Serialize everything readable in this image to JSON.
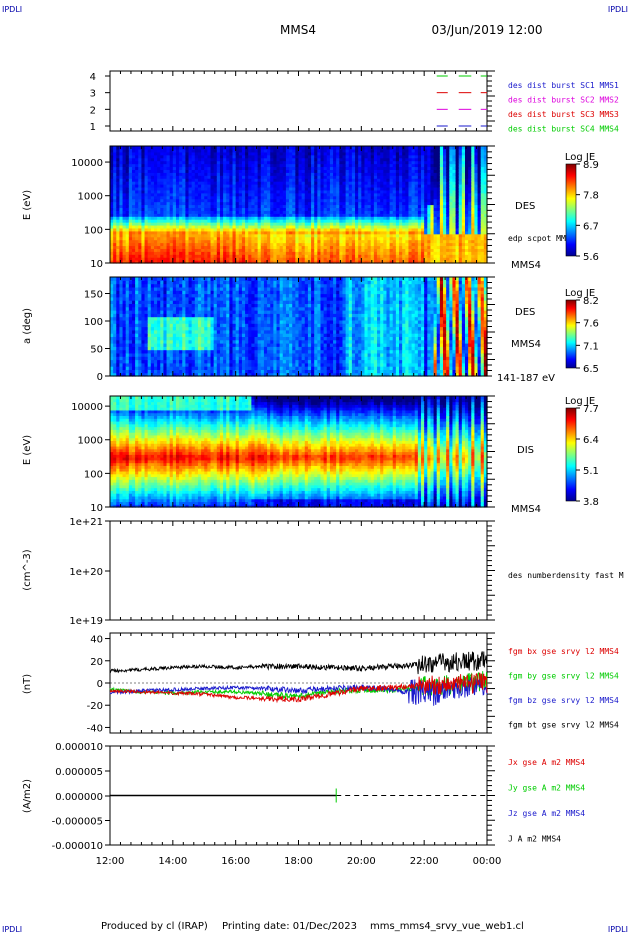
{
  "header": {
    "corner_label": "IPDLI",
    "spacecraft": "MMS4",
    "datetime": "03/Jun/2019 12:00"
  },
  "footer": {
    "produced_by": "Produced by cl (IRAP)",
    "printing_date": "Printing date: 01/Dec/2023",
    "script": "mms_mms4_srvy_vue_web1.cl"
  },
  "colors": {
    "blue": "#1a1acc",
    "magenta": "#dd00dd",
    "red": "#dd0000",
    "green": "#00cc00",
    "black": "#000000"
  },
  "chart_data": [
    {
      "type": "line",
      "panel": "burst-flags",
      "yticks": [
        "1",
        "2",
        "3",
        "4"
      ],
      "ylim": [
        0.7,
        4.3
      ],
      "legend": [
        {
          "text": "des dist burst SC1 MMS1",
          "color": "blue"
        },
        {
          "text": "des dist burst SC2 MMS2",
          "color": "magenta"
        },
        {
          "text": "des dist burst SC3 MMS3",
          "color": "red"
        },
        {
          "text": "des dist burst SC4 MMS4",
          "color": "green"
        }
      ],
      "series": [
        {
          "level": 4,
          "color": "green",
          "intervals": [
            [
              22.4,
              22.75
            ],
            [
              23.1,
              23.5
            ],
            [
              23.8,
              24.0
            ]
          ]
        },
        {
          "level": 3,
          "color": "red",
          "intervals": [
            [
              22.4,
              22.75
            ],
            [
              23.1,
              23.5
            ],
            [
              23.8,
              24.0
            ]
          ]
        },
        {
          "level": 2,
          "color": "magenta",
          "intervals": [
            [
              22.4,
              22.75
            ],
            [
              23.1,
              23.5
            ],
            [
              23.8,
              24.0
            ]
          ]
        },
        {
          "level": 1,
          "color": "blue",
          "intervals": [
            [
              22.4,
              22.75
            ],
            [
              23.1,
              23.5
            ],
            [
              23.8,
              24.0
            ]
          ]
        }
      ]
    },
    {
      "type": "heatmap",
      "panel": "des-energy",
      "ylabel": "E (eV)",
      "scale": "log",
      "ylim": [
        10,
        30000
      ],
      "yticks": [
        "10",
        "100",
        "1000",
        "10000"
      ],
      "right_labels": [
        "DES",
        "edp scpot MMS4",
        "MMS4"
      ],
      "colorbar": {
        "title": "Log JE",
        "ticks": [
          "5.6",
          "6.7",
          "7.8",
          "8.9"
        ],
        "range": [
          5.6,
          8.9
        ]
      }
    },
    {
      "type": "heatmap",
      "panel": "des-pitch",
      "ylabel": "a (deg)",
      "ylim": [
        0,
        180
      ],
      "yticks": [
        "0",
        "50",
        "100",
        "150"
      ],
      "right_labels": [
        "DES",
        "MMS4",
        "141-187 eV"
      ],
      "colorbar": {
        "title": "Log JE",
        "ticks": [
          "6.5",
          "7.1",
          "7.6",
          "8.2"
        ],
        "range": [
          6.5,
          8.2
        ]
      }
    },
    {
      "type": "heatmap",
      "panel": "dis-energy",
      "ylabel": "E (eV)",
      "scale": "log",
      "ylim": [
        10,
        20000
      ],
      "yticks": [
        "10",
        "100",
        "1000",
        "10000"
      ],
      "right_labels": [
        "DIS",
        "MMS4"
      ],
      "colorbar": {
        "title": "Log JE",
        "ticks": [
          "3.8",
          "5.1",
          "6.4",
          "7.7"
        ],
        "range": [
          3.8,
          7.7
        ]
      }
    },
    {
      "type": "line",
      "panel": "density",
      "ylabel": "(cm^-3)",
      "scale": "log",
      "ylim": [
        1e+19,
        1e+21
      ],
      "yticks": [
        "1e+19",
        "1e+20",
        "1e+21"
      ],
      "right_labels": [
        "des numberdensity fast M"
      ],
      "series": []
    },
    {
      "type": "line",
      "panel": "magnetic-field",
      "ylabel": "(nT)",
      "ylim": [
        -45,
        45
      ],
      "yticks": [
        "-40",
        "-20",
        "0",
        "20",
        "40"
      ],
      "legend": [
        {
          "text": "fgm bx gse srvy l2 MMS4",
          "color": "red"
        },
        {
          "text": "fgm by gse srvy l2 MMS4",
          "color": "green"
        },
        {
          "text": "fgm bz gse srvy l2 MMS4",
          "color": "blue"
        },
        {
          "text": "fgm bt gse srvy l2 MMS4",
          "color": "black"
        }
      ],
      "series": [
        {
          "name": "fgm bt gse srvy l2 MMS4",
          "color": "black",
          "x": [
            12,
            13,
            14,
            15,
            16,
            17,
            18,
            19,
            20,
            21,
            22,
            23,
            24
          ],
          "y": [
            11,
            12,
            14,
            15,
            14,
            15,
            15,
            14,
            13,
            15,
            17,
            19,
            20
          ]
        },
        {
          "name": "fgm by gse srvy l2 MMS4",
          "color": "green",
          "x": [
            12,
            13,
            14,
            15,
            16,
            17,
            18,
            19,
            20,
            21,
            22,
            23,
            24
          ],
          "y": [
            -6,
            -8,
            -9,
            -8,
            -8,
            -10,
            -12,
            -8,
            -6,
            -7,
            -3,
            -1,
            2
          ]
        },
        {
          "name": "fgm bz gse srvy l2 MMS4",
          "color": "blue",
          "x": [
            12,
            13,
            14,
            15,
            16,
            17,
            18,
            19,
            20,
            21,
            22,
            23,
            24
          ],
          "y": [
            -9,
            -7,
            -6,
            -5,
            -4,
            -5,
            -7,
            -5,
            -4,
            -6,
            -10,
            -5,
            -2
          ]
        },
        {
          "name": "fgm bx gse srvy l2 MMS4",
          "color": "red",
          "x": [
            12,
            13,
            14,
            15,
            16,
            17,
            18,
            19,
            20,
            21,
            22,
            23,
            24
          ],
          "y": [
            -7,
            -8,
            -9,
            -10,
            -13,
            -14,
            -15,
            -10,
            -5,
            -4,
            -2,
            -1,
            0
          ]
        }
      ]
    },
    {
      "type": "line",
      "panel": "current-density",
      "ylabel": "(A/m2)",
      "ylim": [
        -1e-05,
        1e-05
      ],
      "yticks": [
        "-0.000010",
        "-0.000005",
        "0.000000",
        "0.000005",
        "0.000010"
      ],
      "xticks": [
        "12:00",
        "14:00",
        "16:00",
        "18:00",
        "20:00",
        "22:00",
        "00:00"
      ],
      "xlim": [
        12,
        24
      ],
      "legend": [
        {
          "text": "Jx gse A m2 MMS4",
          "color": "red"
        },
        {
          "text": "Jy gse A m2 MMS4",
          "color": "green"
        },
        {
          "text": "Jz gse A m2 MMS4",
          "color": "blue"
        },
        {
          "text": "J A m2 MMS4",
          "color": "black"
        }
      ],
      "series": [
        {
          "name": "J A m2 MMS4",
          "color": "black",
          "x": [
            12,
            19.2
          ],
          "y": [
            0,
            0
          ]
        },
        {
          "name": "",
          "color": "black",
          "style": "dashed",
          "x": [
            19.2,
            24
          ],
          "y": [
            0,
            0
          ]
        }
      ]
    }
  ]
}
